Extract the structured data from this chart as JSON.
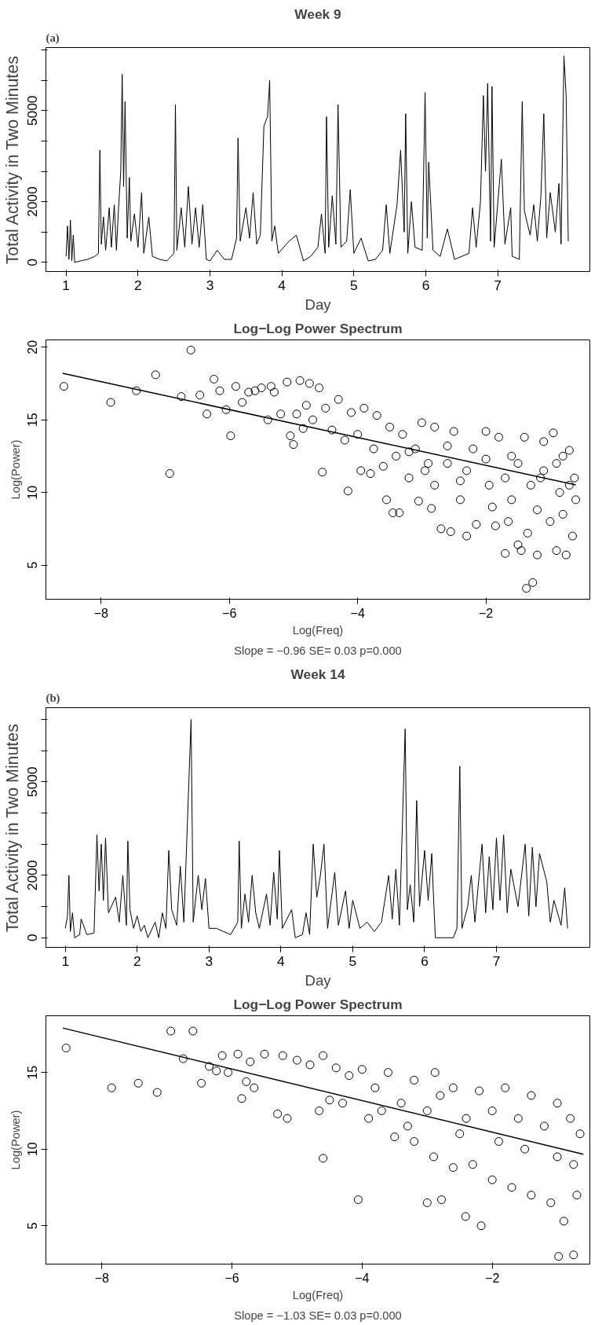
{
  "chart_data": [
    {
      "type": "line",
      "title": "Week 9",
      "xlabel": "Day",
      "ylabel": "Total Activity in Two Minutes",
      "annotations": [
        "(a)"
      ],
      "xlim": [
        0.72,
        8.28
      ],
      "ylim": [
        -300,
        7080
      ],
      "xticks": [
        1,
        2,
        3,
        4,
        5,
        6,
        7
      ],
      "yticks": [
        0,
        {
          "value": 1000,
          "label": null
        },
        2000,
        {
          "value": 3000,
          "label": null
        },
        {
          "value": 4000,
          "label": null
        },
        5000,
        {
          "value": 6000,
          "label": null
        },
        {
          "value": 7000,
          "label": null
        }
      ],
      "series": [
        {
          "color": "#000000",
          "x": [
            1.0,
            1.02,
            1.04,
            1.06,
            1.08,
            1.1,
            1.12,
            1.2,
            1.3,
            1.4,
            1.45,
            1.47,
            1.49,
            1.52,
            1.55,
            1.6,
            1.63,
            1.67,
            1.7,
            1.73,
            1.76,
            1.78,
            1.8,
            1.82,
            1.85,
            1.88,
            1.9,
            1.95,
            2.0,
            2.05,
            2.08,
            2.15,
            2.2,
            2.3,
            2.4,
            2.5,
            2.52,
            2.54,
            2.6,
            2.65,
            2.7,
            2.75,
            2.8,
            2.85,
            2.9,
            2.95,
            3.0,
            3.1,
            3.2,
            3.3,
            3.37,
            3.39,
            3.42,
            3.5,
            3.55,
            3.6,
            3.65,
            3.7,
            3.75,
            3.8,
            3.83,
            3.86,
            3.9,
            3.95,
            4.1,
            4.2,
            4.3,
            4.4,
            4.5,
            4.55,
            4.6,
            4.62,
            4.65,
            4.7,
            4.75,
            4.78,
            4.82,
            4.9,
            4.95,
            5.0,
            5.1,
            5.2,
            5.3,
            5.4,
            5.45,
            5.5,
            5.6,
            5.65,
            5.7,
            5.72,
            5.75,
            5.8,
            5.85,
            5.95,
            5.99,
            6.02,
            6.04,
            6.1,
            6.2,
            6.3,
            6.4,
            6.5,
            6.6,
            6.65,
            6.7,
            6.76,
            6.8,
            6.83,
            6.86,
            6.9,
            6.92,
            6.95,
            7.05,
            7.1,
            7.18,
            7.2,
            7.3,
            7.34,
            7.37,
            7.45,
            7.5,
            7.55,
            7.6,
            7.64,
            7.68,
            7.73,
            7.8,
            7.85,
            7.88,
            7.92,
            7.95,
            7.98
          ],
          "values": [
            200,
            1200,
            100,
            1400,
            50,
            900,
            0,
            50,
            100,
            200,
            300,
            3700,
            600,
            1500,
            400,
            1800,
            500,
            1900,
            400,
            1800,
            3000,
            6200,
            2500,
            5300,
            800,
            2800,
            700,
            1600,
            500,
            2300,
            300,
            1500,
            200,
            100,
            50,
            300,
            5200,
            400,
            1800,
            500,
            2500,
            600,
            1800,
            500,
            1900,
            100,
            50,
            400,
            100,
            100,
            800,
            4100,
            700,
            1800,
            800,
            2300,
            600,
            900,
            4500,
            4800,
            6000,
            700,
            1200,
            300,
            700,
            900,
            50,
            200,
            500,
            1600,
            300,
            4800,
            500,
            2200,
            600,
            5200,
            500,
            700,
            2400,
            300,
            800,
            50,
            100,
            400,
            1900,
            300,
            1900,
            3700,
            1000,
            4900,
            300,
            2000,
            500,
            400,
            5600,
            800,
            3300,
            400,
            200,
            1100,
            100,
            200,
            300,
            1800,
            500,
            2000,
            5500,
            3000,
            5900,
            700,
            5800,
            500,
            3400,
            600,
            1800,
            200,
            100,
            5300,
            1700,
            900,
            1900,
            700,
            2200,
            4900,
            800,
            2300,
            1000,
            2600,
            600,
            6800,
            5500,
            700
          ]
        }
      ]
    },
    {
      "type": "scatter",
      "title": "Log−Log Power Spectrum",
      "xlabel": "Log(Freq)",
      "ylabel": "Log(Power)",
      "annotations": [
        "Slope = −0.96 SE= 0.03 p=0.000"
      ],
      "xlim": [
        -8.86,
        -0.38
      ],
      "ylim": [
        2.65,
        20.5
      ],
      "xticks": [
        -8,
        -6,
        -4,
        -2
      ],
      "yticks": [
        5,
        10,
        15,
        20
      ],
      "series": [
        {
          "type": "scatter",
          "marker": "circle",
          "color": "#000000",
          "x": [
            -8.58,
            -7.85,
            -7.45,
            -7.15,
            -6.93,
            -6.75,
            -6.6,
            -6.46,
            -6.35,
            -6.24,
            -6.15,
            -6.05,
            -5.98,
            -5.9,
            -5.8,
            -5.7,
            -5.6,
            -5.5,
            -5.4,
            -5.35,
            -5.3,
            -5.2,
            -5.1,
            -5.05,
            -5.0,
            -4.95,
            -4.9,
            -4.85,
            -4.8,
            -4.75,
            -4.7,
            -4.6,
            -4.55,
            -4.5,
            -4.4,
            -4.3,
            -4.2,
            -4.15,
            -4.1,
            -4.0,
            -3.95,
            -3.9,
            -3.8,
            -3.75,
            -3.7,
            -3.6,
            -3.55,
            -3.5,
            -3.45,
            -3.4,
            -3.35,
            -3.3,
            -3.2,
            -3.1,
            -3.0,
            -3.05,
            -2.95,
            -2.85,
            -2.8,
            -2.7,
            -2.6,
            -2.55,
            -2.5,
            -2.4,
            -2.3,
            -2.2,
            -2.15,
            -2.0,
            -1.95,
            -1.85,
            -1.8,
            -1.7,
            -1.65,
            -1.6,
            -1.5,
            -1.45,
            -1.4,
            -1.35,
            -1.37,
            -1.27,
            -1.2,
            -1.15,
            -1.1,
            -1.0,
            -0.95,
            -0.9,
            -0.85,
            -0.8,
            -0.75,
            -0.7,
            -0.65,
            -0.62,
            -0.6,
            -3.2,
            -2.9,
            -2.6,
            -2.3,
            -2.0,
            -1.7,
            -1.5,
            -1.3,
            -1.1,
            -0.9,
            -0.7,
            -2.8,
            -2.4,
            -1.9,
            -1.6,
            -1.2,
            -0.8
          ],
          "values": [
            17.3,
            16.2,
            17.0,
            18.1,
            11.3,
            16.6,
            19.8,
            16.7,
            15.4,
            17.8,
            17.0,
            15.7,
            13.9,
            17.3,
            16.2,
            16.9,
            17.0,
            17.2,
            15.0,
            17.3,
            16.9,
            15.4,
            17.6,
            13.9,
            13.3,
            15.4,
            17.7,
            14.4,
            16.0,
            17.5,
            15.0,
            17.2,
            11.4,
            15.8,
            14.3,
            16.4,
            13.6,
            10.1,
            15.5,
            14.0,
            11.5,
            15.8,
            11.3,
            13.0,
            15.3,
            11.8,
            9.5,
            14.5,
            8.6,
            12.5,
            8.6,
            14.0,
            11.0,
            13.0,
            14.8,
            9.4,
            11.5,
            8.9,
            14.5,
            7.5,
            12.0,
            7.3,
            14.2,
            9.5,
            7.0,
            13.0,
            7.8,
            14.2,
            10.5,
            7.7,
            13.8,
            5.8,
            8.0,
            12.5,
            6.4,
            6.0,
            13.8,
            7.2,
            3.4,
            3.8,
            5.7,
            11.0,
            13.5,
            8.0,
            14.1,
            6.0,
            10.0,
            12.5,
            5.7,
            12.9,
            7.0,
            11.0,
            9.5,
            12.8,
            12.0,
            13.2,
            11.5,
            12.3,
            11.0,
            12.0,
            10.5,
            11.5,
            12.0,
            10.5,
            10.5,
            10.8,
            9.0,
            9.5,
            8.8,
            8.5
          ]
        },
        {
          "type": "line",
          "color": "#000000",
          "x": [
            -8.6,
            -0.6
          ],
          "values": [
            18.2,
            10.52
          ]
        }
      ]
    },
    {
      "type": "line",
      "title": "Week 14",
      "xlabel": "Day",
      "ylabel": "Total Activity in Two Minutes",
      "annotations": [
        "(b)"
      ],
      "xlim": [
        0.73,
        8.3
      ],
      "ylim": [
        -310,
        7380
      ],
      "xticks": [
        1,
        2,
        3,
        4,
        5,
        6,
        7
      ],
      "yticks": [
        0,
        {
          "value": 1000,
          "label": null
        },
        2000,
        {
          "value": 3000,
          "label": null
        },
        {
          "value": 4000,
          "label": null
        },
        5000,
        {
          "value": 6000,
          "label": null
        },
        {
          "value": 7000,
          "label": null
        }
      ],
      "series": [
        {
          "color": "#000000",
          "x": [
            1.0,
            1.03,
            1.05,
            1.07,
            1.1,
            1.13,
            1.2,
            1.22,
            1.3,
            1.4,
            1.44,
            1.47,
            1.5,
            1.53,
            1.56,
            1.6,
            1.7,
            1.75,
            1.8,
            1.85,
            1.87,
            1.9,
            1.95,
            2.0,
            2.05,
            2.1,
            2.15,
            2.25,
            2.3,
            2.35,
            2.4,
            2.44,
            2.48,
            2.55,
            2.6,
            2.65,
            2.75,
            2.78,
            2.85,
            2.9,
            2.95,
            3.0,
            3.1,
            3.2,
            3.3,
            3.4,
            3.42,
            3.45,
            3.5,
            3.55,
            3.6,
            3.65,
            3.7,
            3.8,
            3.85,
            3.9,
            3.95,
            3.98,
            4.02,
            4.15,
            4.2,
            4.3,
            4.35,
            4.4,
            4.45,
            4.5,
            4.55,
            4.6,
            4.65,
            4.75,
            4.8,
            4.9,
            4.95,
            5.0,
            5.1,
            5.2,
            5.3,
            5.4,
            5.5,
            5.55,
            5.6,
            5.65,
            5.73,
            5.76,
            5.8,
            5.85,
            5.89,
            5.93,
            6.0,
            6.05,
            6.1,
            6.13,
            6.15,
            6.3,
            6.4,
            6.45,
            6.49,
            6.52,
            6.6,
            6.65,
            6.7,
            6.8,
            6.85,
            6.9,
            6.95,
            7.0,
            7.05,
            7.1,
            7.15,
            7.2,
            7.3,
            7.4,
            7.45,
            7.5,
            7.55,
            7.6,
            7.7,
            7.75,
            7.8,
            7.9,
            7.95,
            7.99
          ],
          "values": [
            300,
            700,
            2000,
            200,
            800,
            0,
            100,
            600,
            100,
            150,
            3300,
            1500,
            3000,
            1200,
            3200,
            800,
            1300,
            500,
            2000,
            400,
            3100,
            900,
            300,
            700,
            200,
            400,
            0,
            500,
            0,
            800,
            300,
            2800,
            900,
            400,
            2300,
            500,
            7000,
            500,
            2000,
            900,
            1900,
            300,
            300,
            200,
            100,
            500,
            3100,
            300,
            1400,
            500,
            2000,
            800,
            300,
            1400,
            400,
            2100,
            600,
            2800,
            300,
            900,
            0,
            100,
            800,
            100,
            3000,
            1300,
            2000,
            3000,
            300,
            2100,
            400,
            1500,
            300,
            1200,
            300,
            500,
            200,
            500,
            2000,
            600,
            2200,
            400,
            6700,
            900,
            1700,
            500,
            4400,
            1000,
            2800,
            1200,
            2700,
            1000,
            0,
            0,
            0,
            300,
            5500,
            300,
            1000,
            2000,
            500,
            3000,
            800,
            2600,
            900,
            3200,
            1200,
            3300,
            800,
            2200,
            1000,
            3000,
            700,
            2900,
            1000,
            2700,
            1800,
            500,
            1200,
            400,
            1600,
            300
          ]
        }
      ]
    },
    {
      "type": "scatter",
      "title": "Log−Log Power Spectrum",
      "xlabel": "Log(Freq)",
      "ylabel": "Log(Power)",
      "annotations": [
        "Slope = −1.03 SE= 0.03 p=0.000"
      ],
      "xlim": [
        -8.86,
        -0.5
      ],
      "ylim": [
        2.5,
        18.7
      ],
      "xticks": [
        -8,
        -6,
        -4,
        -2
      ],
      "yticks": [
        5,
        10,
        15
      ],
      "series": [
        {
          "type": "scatter",
          "marker": "circle",
          "color": "#000000",
          "x": [
            -8.55,
            -7.85,
            -7.44,
            -7.15,
            -6.94,
            -6.75,
            -6.6,
            -6.47,
            -6.35,
            -6.24,
            -6.15,
            -6.06,
            -5.91,
            -5.85,
            -5.78,
            -5.72,
            -5.66,
            -5.5,
            -5.3,
            -5.22,
            -5.15,
            -4.6,
            -4.66,
            -4.06,
            -3.0,
            -2.78,
            -2.41,
            -2.17,
            -2.88,
            -0.98,
            -0.75,
            -5.0,
            -4.8,
            -4.6,
            -4.4,
            -4.2,
            -4.0,
            -3.8,
            -3.6,
            -3.4,
            -3.2,
            -3.0,
            -2.8,
            -2.6,
            -2.4,
            -2.2,
            -2.0,
            -1.8,
            -1.6,
            -1.4,
            -1.2,
            -1.0,
            -0.8,
            -0.65,
            -3.5,
            -3.2,
            -2.9,
            -2.6,
            -2.3,
            -2.0,
            -1.7,
            -1.4,
            -1.1,
            -0.9,
            -0.7,
            -1.5,
            -1.0,
            -0.75,
            -2.5,
            -1.9,
            -3.7,
            -4.3,
            -4.5,
            -3.9,
            -3.3
          ],
          "values": [
            16.6,
            14.0,
            14.3,
            13.7,
            17.7,
            15.9,
            17.7,
            14.3,
            15.4,
            15.1,
            16.1,
            15.0,
            16.2,
            13.3,
            14.4,
            15.7,
            14.0,
            16.2,
            12.3,
            16.1,
            12.0,
            9.4,
            12.5,
            6.7,
            6.5,
            6.7,
            5.6,
            5.0,
            15.0,
            3.0,
            3.1,
            15.8,
            15.5,
            16.1,
            15.3,
            14.8,
            15.2,
            14.0,
            15.0,
            13.0,
            14.5,
            12.5,
            13.5,
            14.0,
            12.0,
            13.8,
            12.5,
            14.0,
            12.0,
            13.5,
            11.5,
            13.0,
            12.0,
            11.0,
            10.8,
            10.5,
            9.5,
            8.8,
            9.0,
            8.0,
            7.5,
            7.0,
            6.5,
            5.3,
            7.0,
            10.0,
            9.5,
            9.0,
            11.0,
            10.5,
            12.5,
            13.0,
            13.2,
            12.0,
            11.5
          ]
        },
        {
          "type": "line",
          "color": "#000000",
          "x": [
            -8.6,
            -0.6
          ],
          "values": [
            17.9,
            9.66
          ]
        }
      ]
    }
  ]
}
